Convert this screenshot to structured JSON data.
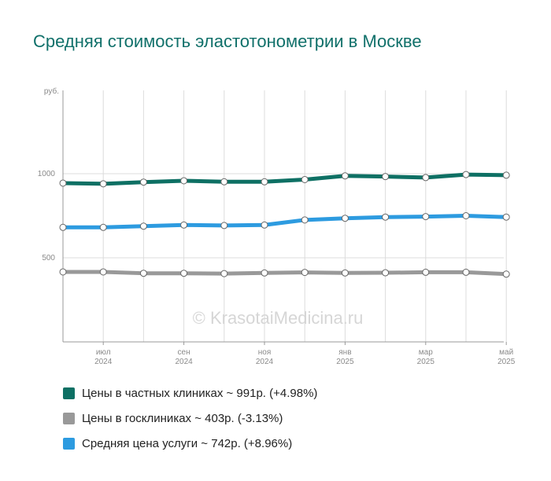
{
  "title": "Средняя стоимость эластотонометрии в Москве",
  "watermark": "© KrasotaiMedicina.ru",
  "chart_data": {
    "type": "line",
    "y_unit": "руб.",
    "ylim": [
      0,
      1000
    ],
    "y_ticks": [
      {
        "value": 1000,
        "label": "1000"
      },
      {
        "value": 500,
        "label": "500"
      }
    ],
    "x_count": 12,
    "x_ticks": [
      {
        "index": 1,
        "month": "июл",
        "year": "2024"
      },
      {
        "index": 3,
        "month": "сен",
        "year": "2024"
      },
      {
        "index": 5,
        "month": "ноя",
        "year": "2024"
      },
      {
        "index": 7,
        "month": "янв",
        "year": "2025"
      },
      {
        "index": 9,
        "month": "мар",
        "year": "2025"
      },
      {
        "index": 11,
        "month": "май",
        "year": "2025"
      }
    ],
    "grid": true,
    "legend_position": "bottom",
    "series": [
      {
        "name": "Цены в частных клиниках ~ 991р. (+4.98%)",
        "color": "#0e7064",
        "values": [
          944,
          940,
          950,
          958,
          952,
          952,
          965,
          987,
          983,
          977,
          995,
          991
        ]
      },
      {
        "name": "Цены в госклиниках ~ 403р. (-3.13%)",
        "color": "#999999",
        "values": [
          416,
          416,
          408,
          408,
          406,
          410,
          413,
          410,
          411,
          414,
          414,
          403
        ]
      },
      {
        "name": "Средняя цена услуги ~ 742р. (+8.96%)",
        "color": "#2d9be0",
        "values": [
          681,
          681,
          688,
          695,
          692,
          695,
          725,
          735,
          742,
          745,
          750,
          742
        ]
      }
    ]
  }
}
